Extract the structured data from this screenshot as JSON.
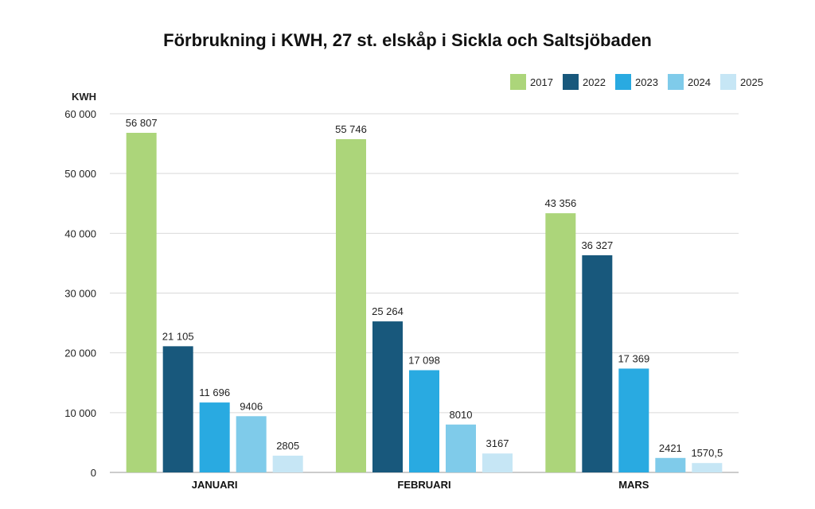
{
  "chart_data": {
    "type": "bar",
    "title": "Förbrukning i KWH, 27 st. elskåp i Sickla och Saltsjöbaden",
    "ylabel": "KWH",
    "xlabel": "",
    "ylim": [
      0,
      60000
    ],
    "yticks": [
      "0",
      "10 000",
      "20 000",
      "30 000",
      "40 000",
      "50 000",
      "60 000"
    ],
    "ytick_values": [
      0,
      10000,
      20000,
      30000,
      40000,
      50000,
      60000
    ],
    "grid": true,
    "legend_position": "top-right",
    "categories": [
      "JANUARI",
      "FEBRUARI",
      "MARS"
    ],
    "series": [
      {
        "name": "2017",
        "color": "#acd57a",
        "values": [
          56807,
          55746,
          43356
        ],
        "labels": [
          "56 807",
          "55 746",
          "43 356"
        ]
      },
      {
        "name": "2022",
        "color": "#18587c",
        "values": [
          21105,
          25264,
          36327
        ],
        "labels": [
          "21 105",
          "25 264",
          "36 327"
        ]
      },
      {
        "name": "2023",
        "color": "#29aae1",
        "values": [
          11696,
          17098,
          17369
        ],
        "labels": [
          "11 696",
          "17 098",
          "17 369"
        ]
      },
      {
        "name": "2024",
        "color": "#7fcbea",
        "values": [
          9406,
          8010,
          2421
        ],
        "labels": [
          "9406",
          "8010",
          "2421"
        ]
      },
      {
        "name": "2025",
        "color": "#c6e6f5",
        "values": [
          2805,
          3167,
          1570.5
        ],
        "labels": [
          "2805",
          "3167",
          "1570,5"
        ]
      }
    ]
  }
}
